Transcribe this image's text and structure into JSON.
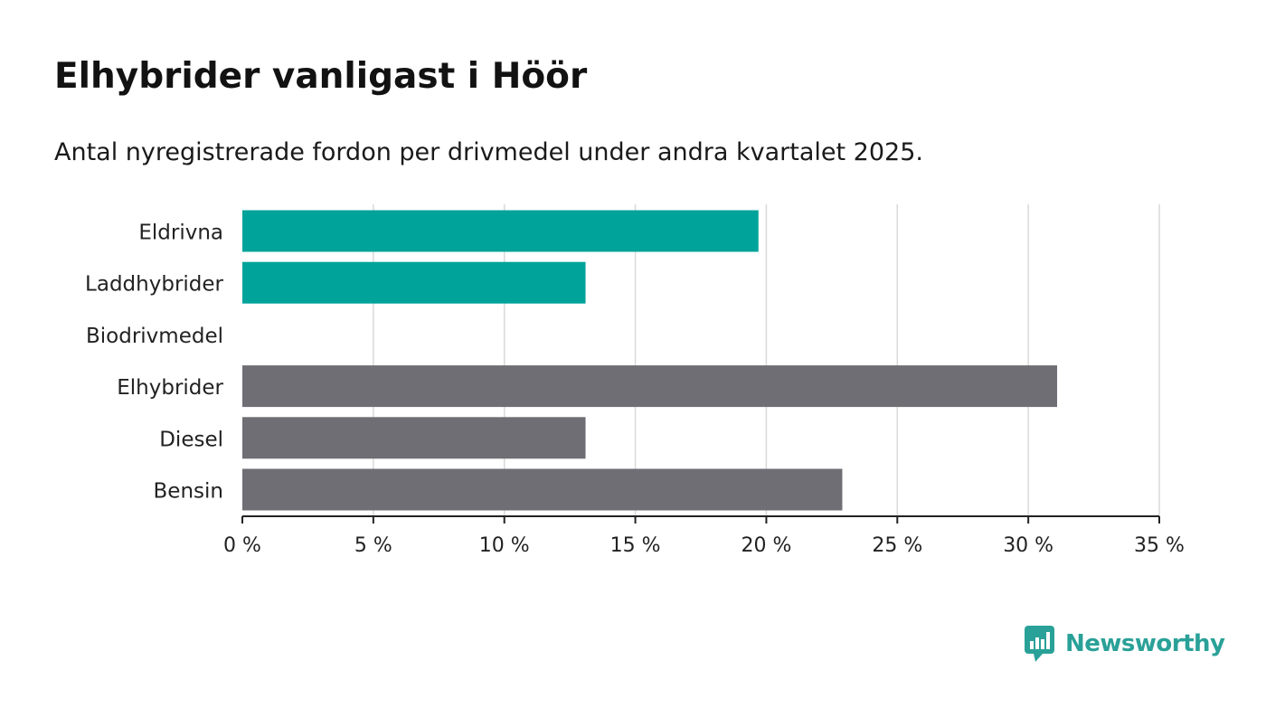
{
  "title": "Elhybrider vanligast i Höör",
  "subtitle": "Antal nyregistrerade fordon per drivmedel under andra kvartalet 2025.",
  "brand": "Newsworthy",
  "colors": {
    "highlight": "#00a39a",
    "default": "#6f6e75",
    "grid": "#d9d9d9",
    "axis": "#222222",
    "brand": "#2aa198"
  },
  "chart_data": {
    "type": "bar",
    "orientation": "horizontal",
    "title": "Elhybrider vanligast i Höör",
    "subtitle": "Antal nyregistrerade fordon per drivmedel under andra kvartalet 2025.",
    "categories": [
      "Eldrivna",
      "Laddhybrider",
      "Biodrivmedel",
      "Elhybrider",
      "Diesel",
      "Bensin"
    ],
    "values": [
      19.7,
      13.1,
      0,
      31.1,
      13.1,
      22.9
    ],
    "highlighted": [
      true,
      true,
      false,
      false,
      false,
      false
    ],
    "xlim": [
      0,
      35
    ],
    "xticks": [
      0,
      5,
      10,
      15,
      20,
      25,
      30,
      35
    ],
    "xtick_labels": [
      "0 %",
      "5 %",
      "10 %",
      "15 %",
      "20 %",
      "25 %",
      "30 %",
      "35 %"
    ],
    "grid": true,
    "legend": "none"
  }
}
